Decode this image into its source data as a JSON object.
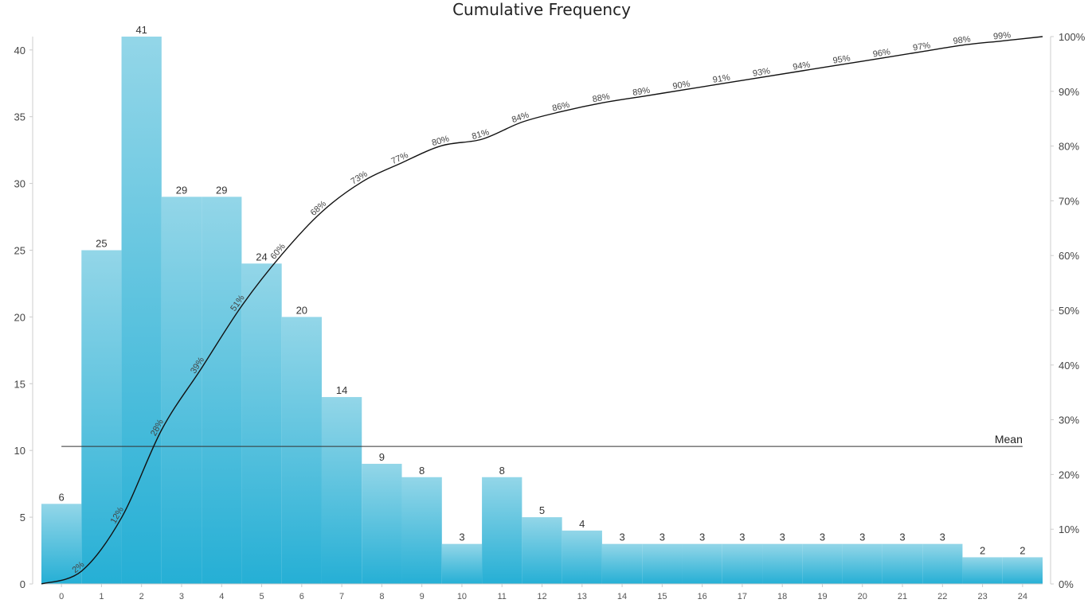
{
  "chart_data": {
    "type": "bar",
    "title": "Cumulative Frequency",
    "categories": [
      "0",
      "1",
      "2",
      "3",
      "4",
      "5",
      "6",
      "7",
      "8",
      "9",
      "10",
      "11",
      "12",
      "13",
      "14",
      "15",
      "16",
      "17",
      "18",
      "19",
      "20",
      "21",
      "22",
      "23",
      "24"
    ],
    "values": [
      6,
      25,
      41,
      29,
      29,
      24,
      20,
      14,
      9,
      8,
      3,
      8,
      5,
      4,
      3,
      3,
      3,
      3,
      3,
      3,
      3,
      3,
      3,
      2,
      2
    ],
    "cumulative_labels": [
      "2%",
      "12%",
      "28%",
      "39%",
      "51%",
      "60%",
      "68%",
      "73%",
      "77%",
      "80%",
      "81%",
      "84%",
      "86%",
      "88%",
      "89%",
      "90%",
      "91%",
      "93%",
      "94%",
      "95%",
      "96%",
      "97%",
      "98%",
      "99%",
      "100%"
    ],
    "cumulative_line_endpoints": {
      "start": 0,
      "end": 100
    },
    "y_left": {
      "ylim": [
        0,
        41
      ],
      "ticks": [
        0,
        5,
        10,
        15,
        20,
        25,
        30,
        35,
        40
      ]
    },
    "y_right": {
      "ylim": [
        0,
        100
      ],
      "ticks": [
        "0%",
        "10%",
        "20%",
        "30%",
        "40%",
        "50%",
        "60%",
        "70%",
        "80%",
        "90%",
        "100%"
      ]
    },
    "mean": {
      "label": "Mean",
      "value": 10.3
    },
    "grid": false,
    "colors": {
      "bar_top": "#93d6e8",
      "bar_bottom": "#25afd5",
      "line": "#111111"
    }
  }
}
